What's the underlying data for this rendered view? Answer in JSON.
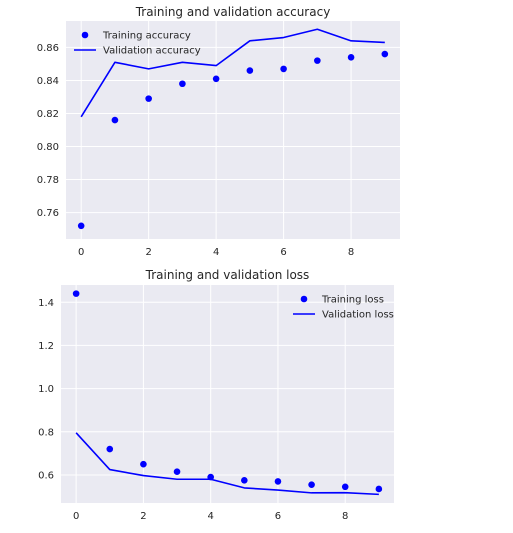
{
  "chart_data": [
    {
      "type": "line",
      "title": "Training and validation accuracy",
      "xlabel": "",
      "ylabel": "",
      "xlim": [
        -0.45,
        9.45
      ],
      "ylim": [
        0.744,
        0.876
      ],
      "xticks": [
        0,
        2,
        4,
        6,
        8
      ],
      "yticks": [
        0.76,
        0.78,
        0.8,
        0.82,
        0.84,
        0.86
      ],
      "ytick_labels": [
        "0.76",
        "0.78",
        "0.80",
        "0.82",
        "0.84",
        "0.86"
      ],
      "grid": true,
      "legend_placement": "top-left",
      "x": [
        0,
        1,
        2,
        3,
        4,
        5,
        6,
        7,
        8,
        9
      ],
      "series": [
        {
          "name": "Training accuracy",
          "style": "scatter",
          "color": "#0000ff",
          "values": [
            0.752,
            0.816,
            0.829,
            0.838,
            0.841,
            0.846,
            0.847,
            0.852,
            0.854,
            0.856
          ]
        },
        {
          "name": "Validation accuracy",
          "style": "line",
          "color": "#0000ff",
          "values": [
            0.818,
            0.851,
            0.847,
            0.851,
            0.849,
            0.864,
            0.866,
            0.871,
            0.864,
            0.863
          ]
        }
      ]
    },
    {
      "type": "line",
      "title": "Training and validation loss",
      "xlabel": "",
      "ylabel": "",
      "xlim": [
        -0.45,
        9.45
      ],
      "ylim": [
        0.47,
        1.48
      ],
      "xticks": [
        0,
        2,
        4,
        6,
        8
      ],
      "yticks": [
        0.6,
        0.8,
        1.0,
        1.2,
        1.4
      ],
      "ytick_labels": [
        "0.6",
        "0.8",
        "1.0",
        "1.2",
        "1.4"
      ],
      "grid": true,
      "legend_placement": "top-right",
      "x": [
        0,
        1,
        2,
        3,
        4,
        5,
        6,
        7,
        8,
        9
      ],
      "series": [
        {
          "name": "Training loss",
          "style": "scatter",
          "color": "#0000ff",
          "values": [
            1.44,
            0.72,
            0.65,
            0.615,
            0.59,
            0.575,
            0.57,
            0.555,
            0.545,
            0.535
          ]
        },
        {
          "name": "Validation loss",
          "style": "line",
          "color": "#0000ff",
          "values": [
            0.795,
            0.625,
            0.597,
            0.58,
            0.58,
            0.54,
            0.53,
            0.517,
            0.518,
            0.51
          ]
        }
      ]
    }
  ]
}
